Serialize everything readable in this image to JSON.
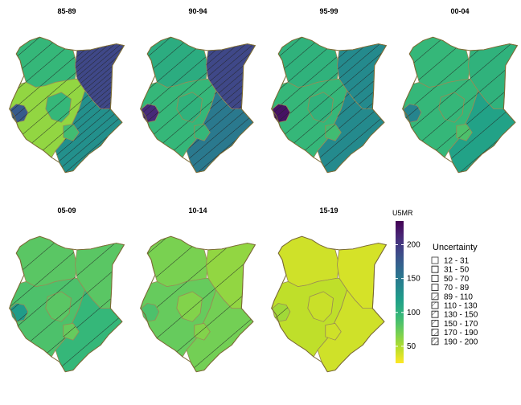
{
  "chart_data": {
    "type": "choropleth-small-multiples",
    "panels": [
      {
        "title": "85-89",
        "regions": {
          "west": 60,
          "northwest": 95,
          "northeast": 190,
          "central": 95,
          "coast": 130,
          "lakeside": 175,
          "nairobi": 90
        },
        "uncertainty": {
          "west": "89 - 110",
          "northwest": "89 - 110",
          "northeast": "190 - 200",
          "central": "89 - 110",
          "coast": "150 - 170",
          "lakeside": "150 - 170",
          "nairobi": "70 - 89"
        }
      },
      {
        "title": "90-94",
        "regions": {
          "west": 95,
          "northwest": 105,
          "northeast": 190,
          "central": 100,
          "coast": 150,
          "lakeside": 210,
          "nairobi": 95
        },
        "uncertainty": {
          "west": "89 - 110",
          "northwest": "89 - 110",
          "northeast": "170 - 190",
          "central": "89 - 110",
          "coast": "130 - 150",
          "lakeside": "170 - 190",
          "nairobi": "70 - 89"
        }
      },
      {
        "title": "95-99",
        "regions": {
          "west": 95,
          "northwest": 100,
          "northeast": 135,
          "central": 100,
          "coast": 135,
          "lakeside": 225,
          "nairobi": 90
        },
        "uncertainty": {
          "west": "89 - 110",
          "northwest": "89 - 110",
          "northeast": "130 - 150",
          "central": "89 - 110",
          "coast": "110 - 130",
          "lakeside": "170 - 190",
          "nairobi": "70 - 89"
        }
      },
      {
        "title": "00-04",
        "regions": {
          "west": 95,
          "northwest": 95,
          "northeast": 100,
          "central": 95,
          "coast": 115,
          "lakeside": 140,
          "nairobi": 85
        },
        "uncertainty": {
          "west": "70 - 89",
          "northwest": "70 - 89",
          "northeast": "70 - 89",
          "central": "70 - 89",
          "coast": "70 - 89",
          "lakeside": "110 - 130",
          "nairobi": "50 - 70"
        }
      },
      {
        "title": "05-09",
        "regions": {
          "west": 85,
          "northwest": 80,
          "northeast": 80,
          "central": 80,
          "coast": 95,
          "lakeside": 120,
          "nairobi": 75
        },
        "uncertainty": {
          "west": "50 - 70",
          "northwest": "50 - 70",
          "northeast": "50 - 70",
          "central": "50 - 70",
          "coast": "50 - 70",
          "lakeside": "89 - 110",
          "nairobi": "31 - 50"
        }
      },
      {
        "title": "10-14",
        "regions": {
          "west": 75,
          "northwest": 68,
          "northeast": 60,
          "central": 65,
          "coast": 70,
          "lakeside": 85,
          "nairobi": 65
        },
        "uncertainty": {
          "west": "31 - 50",
          "northwest": "31 - 50",
          "northeast": "31 - 50",
          "central": "31 - 50",
          "coast": "31 - 50",
          "lakeside": "50 - 70",
          "nairobi": "31 - 50"
        }
      },
      {
        "title": "15-19",
        "regions": {
          "west": 45,
          "northwest": 40,
          "northeast": 38,
          "central": 42,
          "coast": 40,
          "lakeside": 55,
          "nairobi": 40
        },
        "uncertainty": {
          "west": "12 - 31",
          "northwest": "12 - 31",
          "northeast": "12 - 31",
          "central": "12 - 31",
          "coast": "12 - 31",
          "lakeside": "31 - 50",
          "nairobi": "12 - 31"
        }
      }
    ],
    "colorbar": {
      "title": "U5MR",
      "range": [
        25,
        235
      ],
      "ticks": [
        50,
        100,
        150,
        200
      ],
      "palette": "viridis-reversed"
    },
    "uncertainty_legend": {
      "title": "Uncertainty",
      "items": [
        "12 - 31",
        "31 - 50",
        "50 - 70",
        "70 - 89",
        "89 - 110",
        "110 - 130",
        "130 - 150",
        "150 - 170",
        "170 - 190",
        "190 - 200"
      ]
    }
  }
}
